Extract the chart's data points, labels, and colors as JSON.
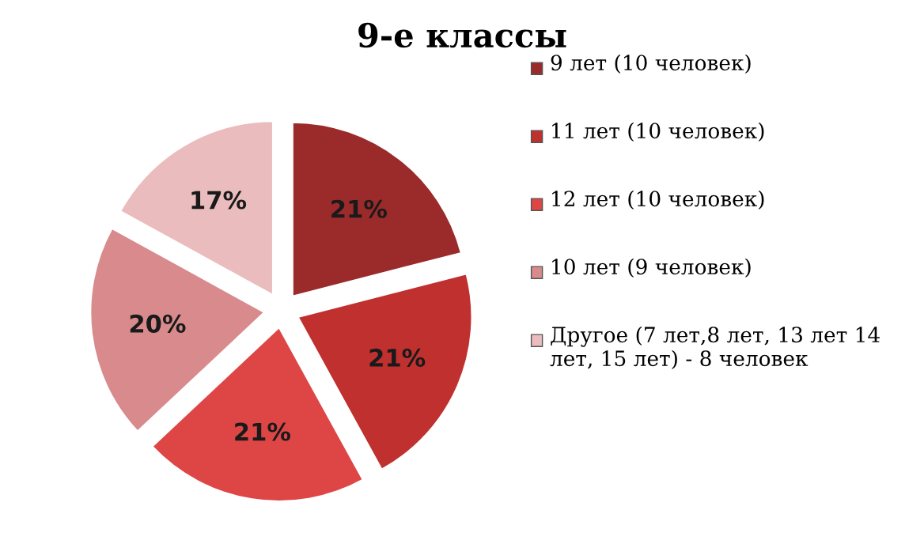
{
  "chart_data": {
    "type": "pie",
    "title": "9-е классы",
    "categories": [
      "9 лет (10 человек)",
      "11 лет (10 человек)",
      "12 лет (10 человек)",
      "10 лет (9 человек)",
      "Другое (7 лет,8 лет, 13 лет 14 лет, 15 лет) - 8 человек"
    ],
    "values": [
      21,
      21,
      21,
      20,
      17
    ],
    "value_labels": [
      "21%",
      "21%",
      "21%",
      "20%",
      "17%"
    ],
    "colors": [
      "#9b2a2a",
      "#c0302f",
      "#de4646",
      "#d88a8c",
      "#ebbcbd"
    ],
    "legend": "right"
  }
}
